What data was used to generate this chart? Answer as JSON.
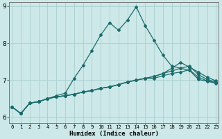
{
  "xlabel": "Humidex (Indice chaleur)",
  "background_color": "#cde8e8",
  "grid_color": "#aad0d0",
  "line_color": "#1a6b6b",
  "x_ticks": [
    0,
    1,
    2,
    3,
    4,
    5,
    6,
    7,
    8,
    9,
    10,
    11,
    12,
    13,
    14,
    15,
    16,
    17,
    18,
    19,
    20,
    21,
    22,
    23
  ],
  "ylim": [
    5.85,
    9.1
  ],
  "xlim": [
    -0.3,
    23.3
  ],
  "series": [
    [
      6.28,
      6.1,
      6.38,
      6.42,
      6.5,
      6.58,
      6.65,
      7.05,
      7.4,
      7.8,
      8.22,
      8.55,
      8.35,
      8.62,
      8.98,
      8.48,
      8.08,
      7.68,
      7.38,
      7.32,
      7.27,
      7.02,
      6.97,
      6.92
    ],
    [
      6.28,
      6.1,
      6.38,
      6.42,
      6.5,
      6.55,
      6.58,
      6.62,
      6.68,
      6.72,
      6.78,
      6.82,
      6.88,
      6.95,
      7.0,
      7.05,
      7.1,
      7.18,
      7.32,
      7.48,
      7.35,
      7.22,
      7.08,
      6.98
    ],
    [
      6.28,
      6.1,
      6.38,
      6.42,
      6.5,
      6.55,
      6.58,
      6.62,
      6.68,
      6.72,
      6.78,
      6.82,
      6.88,
      6.95,
      7.0,
      7.05,
      7.1,
      7.18,
      7.25,
      7.32,
      7.38,
      7.15,
      7.02,
      6.95
    ],
    [
      6.28,
      6.1,
      6.38,
      6.42,
      6.5,
      6.55,
      6.58,
      6.62,
      6.68,
      6.72,
      6.78,
      6.82,
      6.88,
      6.95,
      7.0,
      7.05,
      7.05,
      7.12,
      7.18,
      7.22,
      7.28,
      7.08,
      6.98,
      6.93
    ]
  ],
  "marker": "D",
  "markersize": 2.0,
  "linewidth": 0.9,
  "tick_fontsize_x": 5.2,
  "tick_fontsize_y": 6.5,
  "xlabel_fontsize": 6.5,
  "xlabel_fontweight": "bold"
}
